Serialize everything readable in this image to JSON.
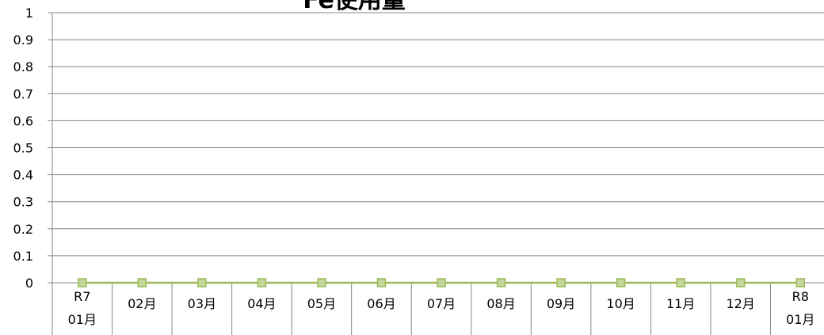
{
  "chart_data": {
    "type": "line",
    "title": "Fe使用量",
    "ylim": [
      0,
      1
    ],
    "yticks": [
      "0",
      "0.1",
      "0.2",
      "0.3",
      "0.4",
      "0.5",
      "0.6",
      "0.7",
      "0.8",
      "0.9",
      "1"
    ],
    "categories": [
      [
        "R7",
        "01月"
      ],
      [
        "02月"
      ],
      [
        "03月"
      ],
      [
        "04月"
      ],
      [
        "05月"
      ],
      [
        "06月"
      ],
      [
        "07月"
      ],
      [
        "08月"
      ],
      [
        "09月"
      ],
      [
        "10月"
      ],
      [
        "11月"
      ],
      [
        "12月"
      ],
      [
        "R8",
        "01月"
      ]
    ],
    "series": [
      {
        "values": [
          0,
          0,
          0,
          0,
          0,
          0,
          0,
          0,
          0,
          0,
          0,
          0,
          0
        ],
        "color": "#9bbb59",
        "marker_color": "#c3d69b"
      }
    ],
    "grid": true,
    "legend": "none"
  }
}
